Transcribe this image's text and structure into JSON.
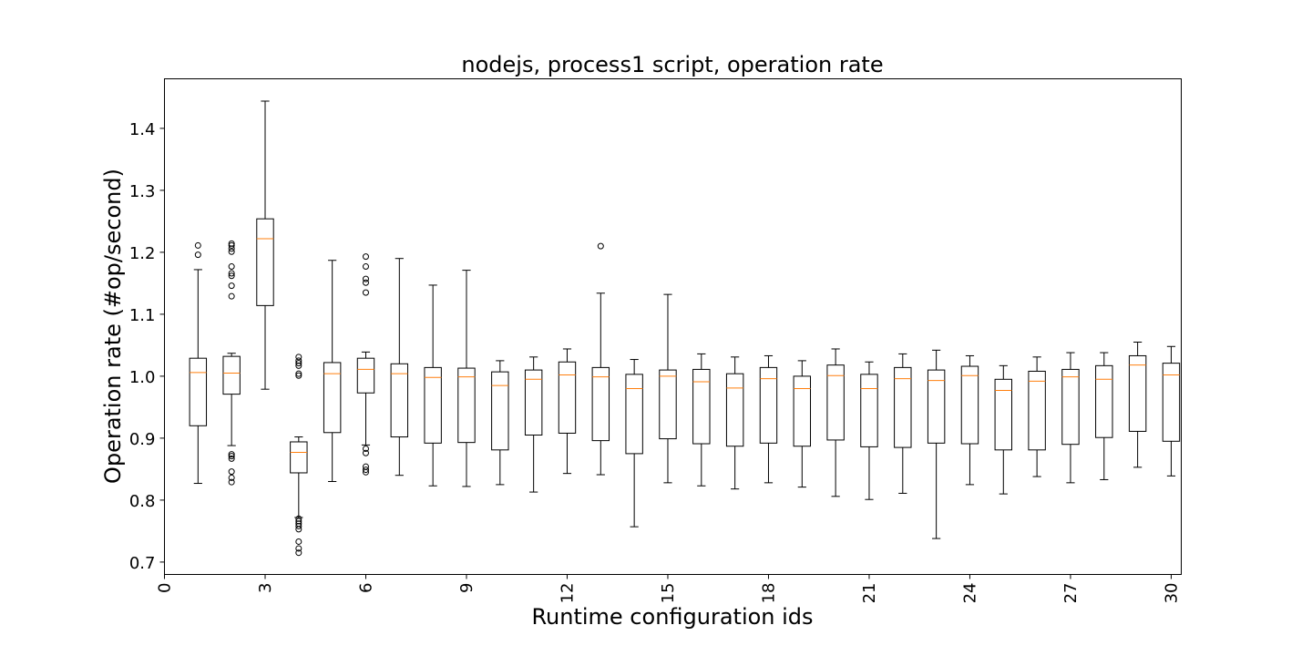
{
  "chart_data": {
    "type": "box",
    "title": "nodejs, process1 script, operation rate",
    "xlabel": "Runtime configuration ids",
    "ylabel": "Operation rate (#op/second)",
    "xlim": [
      0,
      30.3
    ],
    "ylim": [
      0.68,
      1.48
    ],
    "xticks": [
      0,
      3,
      6,
      9,
      12,
      15,
      18,
      21,
      24,
      27,
      30
    ],
    "yticks": [
      0.7,
      0.8,
      0.9,
      1.0,
      1.1,
      1.2,
      1.3,
      1.4
    ],
    "ytick_labels": [
      "0.7",
      "0.8",
      "0.9",
      "1.0",
      "1.1",
      "1.2",
      "1.3",
      "1.4"
    ],
    "grid": false,
    "box_color": "#000000",
    "median_color": "#ff7f0e",
    "boxes": [
      {
        "id": 1,
        "whislo": 0.827,
        "q1": 0.92,
        "med": 1.006,
        "q3": 1.029,
        "whishi": 1.172,
        "fliers": [
          1.196,
          1.211
        ]
      },
      {
        "id": 2,
        "whislo": 0.888,
        "q1": 0.971,
        "med": 1.005,
        "q3": 1.032,
        "whishi": 1.037,
        "fliers": [
          0.829,
          0.836,
          0.846,
          0.867,
          0.871,
          0.874,
          1.129,
          1.146,
          1.162,
          1.166,
          1.177,
          1.201,
          1.206,
          1.211,
          1.214
        ]
      },
      {
        "id": 3,
        "whislo": 0.979,
        "q1": 1.114,
        "med": 1.222,
        "q3": 1.254,
        "whishi": 1.444,
        "fliers": []
      },
      {
        "id": 4,
        "whislo": 0.772,
        "q1": 0.844,
        "med": 0.877,
        "q3": 0.894,
        "whishi": 0.902,
        "fliers": [
          0.715,
          0.722,
          0.733,
          0.753,
          0.758,
          0.762,
          0.766,
          0.77,
          1.001,
          1.004,
          1.017,
          1.021,
          1.025,
          1.031
        ]
      },
      {
        "id": 5,
        "whislo": 0.83,
        "q1": 0.909,
        "med": 1.004,
        "q3": 1.022,
        "whishi": 1.187,
        "fliers": []
      },
      {
        "id": 6,
        "whislo": 0.889,
        "q1": 0.973,
        "med": 1.011,
        "q3": 1.029,
        "whishi": 1.039,
        "fliers": [
          0.845,
          0.849,
          0.854,
          0.876,
          0.883,
          1.135,
          1.151,
          1.157,
          1.177,
          1.193
        ]
      },
      {
        "id": 7,
        "whislo": 0.84,
        "q1": 0.902,
        "med": 1.004,
        "q3": 1.02,
        "whishi": 1.19,
        "fliers": []
      },
      {
        "id": 8,
        "whislo": 0.823,
        "q1": 0.892,
        "med": 0.998,
        "q3": 1.014,
        "whishi": 1.147,
        "fliers": []
      },
      {
        "id": 9,
        "whislo": 0.822,
        "q1": 0.893,
        "med": 0.999,
        "q3": 1.013,
        "whishi": 1.171,
        "fliers": []
      },
      {
        "id": 10,
        "whislo": 0.825,
        "q1": 0.881,
        "med": 0.985,
        "q3": 1.007,
        "whishi": 1.025,
        "fliers": []
      },
      {
        "id": 11,
        "whislo": 0.813,
        "q1": 0.905,
        "med": 0.995,
        "q3": 1.01,
        "whishi": 1.031,
        "fliers": []
      },
      {
        "id": 12,
        "whislo": 0.843,
        "q1": 0.908,
        "med": 1.002,
        "q3": 1.023,
        "whishi": 1.044,
        "fliers": []
      },
      {
        "id": 13,
        "whislo": 0.841,
        "q1": 0.896,
        "med": 0.999,
        "q3": 1.014,
        "whishi": 1.134,
        "fliers": [
          1.21
        ]
      },
      {
        "id": 14,
        "whislo": 0.757,
        "q1": 0.875,
        "med": 0.98,
        "q3": 1.003,
        "whishi": 1.027,
        "fliers": []
      },
      {
        "id": 15,
        "whislo": 0.828,
        "q1": 0.899,
        "med": 1.0,
        "q3": 1.01,
        "whishi": 1.132,
        "fliers": []
      },
      {
        "id": 16,
        "whislo": 0.823,
        "q1": 0.891,
        "med": 0.991,
        "q3": 1.011,
        "whishi": 1.036,
        "fliers": []
      },
      {
        "id": 17,
        "whislo": 0.818,
        "q1": 0.887,
        "med": 0.981,
        "q3": 1.004,
        "whishi": 1.031,
        "fliers": []
      },
      {
        "id": 18,
        "whislo": 0.828,
        "q1": 0.892,
        "med": 0.996,
        "q3": 1.014,
        "whishi": 1.033,
        "fliers": []
      },
      {
        "id": 19,
        "whislo": 0.821,
        "q1": 0.887,
        "med": 0.98,
        "q3": 1.0,
        "whishi": 1.025,
        "fliers": []
      },
      {
        "id": 20,
        "whislo": 0.806,
        "q1": 0.897,
        "med": 1.001,
        "q3": 1.018,
        "whishi": 1.044,
        "fliers": []
      },
      {
        "id": 21,
        "whislo": 0.801,
        "q1": 0.886,
        "med": 0.98,
        "q3": 1.003,
        "whishi": 1.023,
        "fliers": []
      },
      {
        "id": 22,
        "whislo": 0.811,
        "q1": 0.885,
        "med": 0.996,
        "q3": 1.014,
        "whishi": 1.036,
        "fliers": []
      },
      {
        "id": 23,
        "whislo": 0.738,
        "q1": 0.892,
        "med": 0.993,
        "q3": 1.01,
        "whishi": 1.042,
        "fliers": []
      },
      {
        "id": 24,
        "whislo": 0.825,
        "q1": 0.891,
        "med": 1.001,
        "q3": 1.016,
        "whishi": 1.033,
        "fliers": []
      },
      {
        "id": 25,
        "whislo": 0.81,
        "q1": 0.881,
        "med": 0.977,
        "q3": 0.995,
        "whishi": 1.017,
        "fliers": []
      },
      {
        "id": 26,
        "whislo": 0.838,
        "q1": 0.881,
        "med": 0.992,
        "q3": 1.008,
        "whishi": 1.031,
        "fliers": []
      },
      {
        "id": 27,
        "whislo": 0.828,
        "q1": 0.89,
        "med": 0.999,
        "q3": 1.011,
        "whishi": 1.038,
        "fliers": []
      },
      {
        "id": 28,
        "whislo": 0.833,
        "q1": 0.901,
        "med": 0.995,
        "q3": 1.017,
        "whishi": 1.038,
        "fliers": []
      },
      {
        "id": 29,
        "whislo": 0.853,
        "q1": 0.911,
        "med": 1.018,
        "q3": 1.033,
        "whishi": 1.055,
        "fliers": []
      },
      {
        "id": 30,
        "whislo": 0.839,
        "q1": 0.895,
        "med": 1.002,
        "q3": 1.021,
        "whishi": 1.048,
        "fliers": []
      }
    ]
  }
}
